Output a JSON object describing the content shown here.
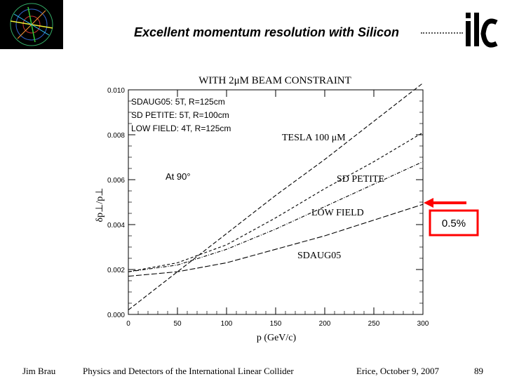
{
  "slide": {
    "title": "Excellent momentum resolution with Silicon",
    "footer": {
      "author": "Jim Brau",
      "talk": "Physics and Detectors of the International Linear Collider",
      "venue": "Erice, October 9, 2007",
      "page": "89"
    },
    "colors": {
      "accent": "#ff0000",
      "background": "#ffffff",
      "text": "#000000"
    },
    "logo_icon": "event-display-icon",
    "ilc_logo_icon": "ilc-logo-icon"
  },
  "chart_data": {
    "type": "line",
    "title": "WITH 2μM BEAM CONSTRAINT",
    "xlabel": "p (GeV/c)",
    "ylabel": "δp⊥/p⊥",
    "xlim": [
      0,
      300
    ],
    "ylim": [
      0,
      0.01
    ],
    "x_ticks": [
      0,
      50,
      100,
      150,
      200,
      250,
      300
    ],
    "x_tick_labels": [
      "0",
      "50",
      "100",
      "150",
      "200",
      "250",
      "300"
    ],
    "y_ticks": [
      0,
      0.002,
      0.004,
      0.006,
      0.008,
      0.01
    ],
    "y_tick_labels": [
      "0.000",
      "0.002",
      "0.004",
      "0.006",
      "0.008",
      "0.010"
    ],
    "legend_lines": [
      "SDAUG05: 5T, R=125cm",
      "SD PETITE: 5T, R=100cm",
      "LOW FIELD: 4T, R=125cm"
    ],
    "series": [
      {
        "name": "TESLA 100 μM",
        "x": [
          0,
          50,
          100,
          150,
          200,
          250,
          300
        ],
        "values": [
          0.0002,
          0.0019,
          0.0036,
          0.0053,
          0.0069,
          0.0086,
          0.0103
        ]
      },
      {
        "name": "SD PETITE",
        "x": [
          0,
          50,
          100,
          150,
          200,
          250,
          300
        ],
        "values": [
          0.0019,
          0.0023,
          0.0031,
          0.0043,
          0.0056,
          0.0068,
          0.0081
        ]
      },
      {
        "name": "LOW FIELD",
        "x": [
          0,
          50,
          100,
          150,
          200,
          250,
          300
        ],
        "values": [
          0.0019,
          0.0022,
          0.0029,
          0.0038,
          0.0048,
          0.0058,
          0.0068
        ]
      },
      {
        "name": "SDAUG05",
        "x": [
          0,
          50,
          100,
          150,
          200,
          250,
          300
        ],
        "values": [
          0.0017,
          0.0019,
          0.0023,
          0.0029,
          0.0035,
          0.0042,
          0.0049
        ]
      }
    ],
    "annotations": {
      "angle": "At 90°",
      "highlight_label": "0.5%"
    }
  }
}
